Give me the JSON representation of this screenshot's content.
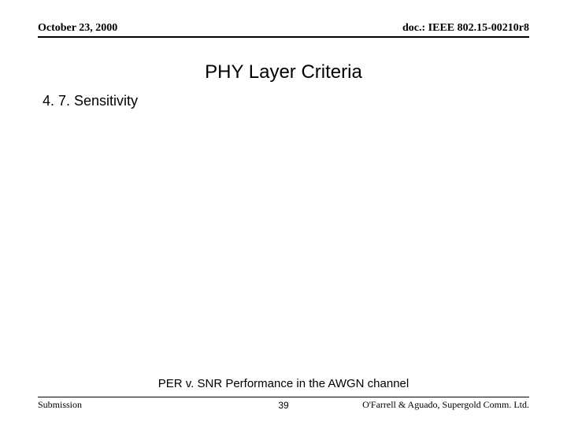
{
  "header": {
    "date": "October 23, 2000",
    "doc": "doc.: IEEE 802.15-00210r8"
  },
  "title": "PHY Layer Criteria",
  "subheading": "4. 7. Sensitivity",
  "caption": "PER v. SNR Performance in the AWGN channel",
  "footer": {
    "left": "Submission",
    "page": "39",
    "right": "O'Farrell & Aguado, Supergold Comm. Ltd."
  }
}
